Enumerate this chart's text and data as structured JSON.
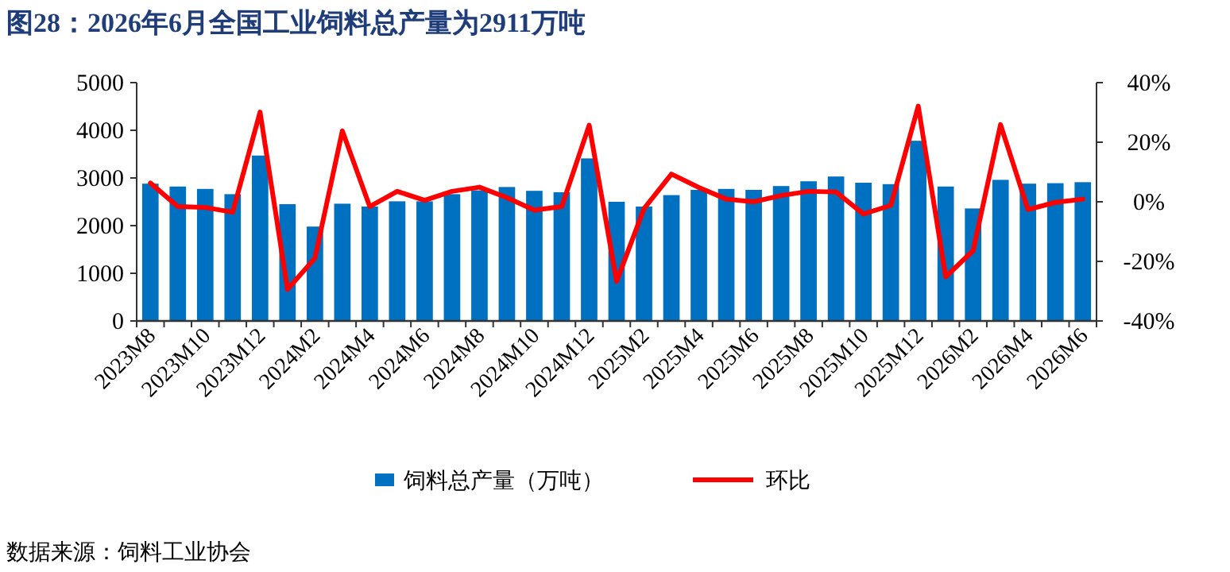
{
  "chart_data": {
    "type": "bar",
    "title": "图28：2026年6月全国工业饲料总产量为2911万吨",
    "categories": [
      "2023M8",
      null,
      "2023M10",
      null,
      "2023M12",
      null,
      "2024M2",
      null,
      "2024M4",
      null,
      "2024M6",
      null,
      "2024M8",
      null,
      "2024M10",
      null,
      "2024M12",
      null,
      "2025M2",
      null,
      "2025M4",
      null,
      "2025M6",
      null,
      "2025M8",
      null,
      "2025M10",
      null,
      "2025M12",
      null,
      "2026M2",
      null,
      "2026M4",
      null,
      "2026M6"
    ],
    "series": [
      {
        "name": "饲料总产量（万吨）",
        "color": "#0070c0",
        "values": [
          2880,
          2820,
          2770,
          2660,
          3470,
          2450,
          1980,
          2460,
          2400,
          2510,
          2510,
          2660,
          2740,
          2810,
          2730,
          2700,
          3410,
          2500,
          2400,
          2640,
          2750,
          2770,
          2750,
          2830,
          2930,
          3030,
          2900,
          2870,
          3780,
          2820,
          2360,
          2960,
          2880,
          2890,
          2911
        ]
      },
      {
        "name": "环比",
        "type": "line",
        "axis": "y2",
        "color": "#ff0000",
        "values": [
          6.3,
          -1.6,
          -1.9,
          -3.5,
          30.1,
          -29.4,
          -18.9,
          23.8,
          -1.6,
          3.5,
          0.5,
          3.5,
          4.9,
          1.4,
          -2.8,
          -1.6,
          25.7,
          -26.7,
          -2.3,
          9.3,
          4.8,
          0.9,
          0,
          2.1,
          3.5,
          3.3,
          -4.1,
          -1.2,
          32.1,
          -25.2,
          -16.4,
          25.9,
          -2.6,
          -0.2,
          0.9
        ]
      }
    ],
    "ylim": [
      0,
      5000
    ],
    "yticks": [
      0,
      1000,
      2000,
      3000,
      4000,
      5000
    ],
    "y2lim": [
      -40,
      40
    ],
    "y2ticks": [
      {
        "value": -40,
        "label": "-40%"
      },
      {
        "value": -20,
        "label": "-20%"
      },
      {
        "value": 0,
        "label": "0%"
      },
      {
        "value": 20,
        "label": "20%"
      },
      {
        "value": 40,
        "label": "40%"
      }
    ],
    "legend": "bottom",
    "grid": false,
    "annotations": [
      "数据来源：饲料工业协会"
    ]
  }
}
